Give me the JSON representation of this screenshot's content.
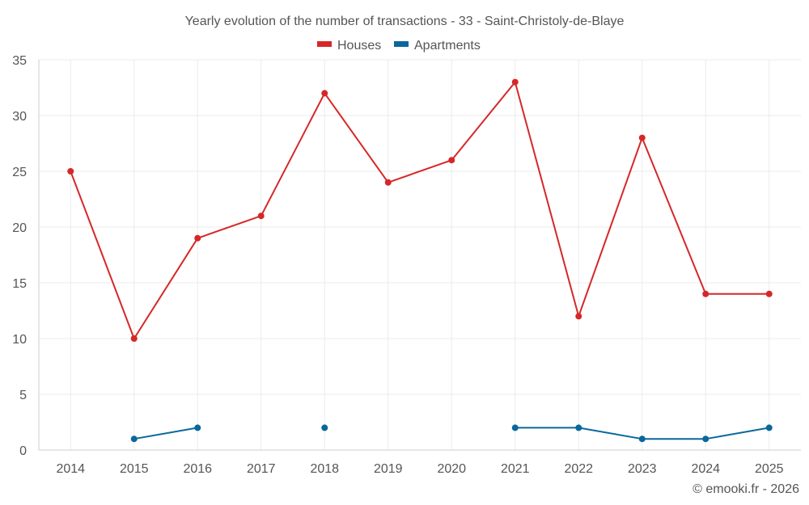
{
  "chart_data": {
    "type": "line",
    "title": "Yearly evolution of the number of transactions - 33 - Saint-Christoly-de-Blaye",
    "categories": [
      "2014",
      "2015",
      "2016",
      "2017",
      "2018",
      "2019",
      "2020",
      "2021",
      "2022",
      "2023",
      "2024",
      "2025"
    ],
    "ylim": [
      0,
      35
    ],
    "yticks": [
      0,
      5,
      10,
      15,
      20,
      25,
      30,
      35
    ],
    "grid": true,
    "legend_position": "top-center",
    "series": [
      {
        "name": "Houses",
        "color": "#d62728",
        "values": [
          25,
          10,
          19,
          21,
          32,
          24,
          26,
          33,
          12,
          28,
          14,
          14
        ]
      },
      {
        "name": "Apartments",
        "color": "#0a679b",
        "values": [
          null,
          1,
          2,
          null,
          2,
          null,
          null,
          2,
          2,
          1,
          1,
          2
        ]
      }
    ]
  },
  "credit": "© emooki.fr - 2026"
}
